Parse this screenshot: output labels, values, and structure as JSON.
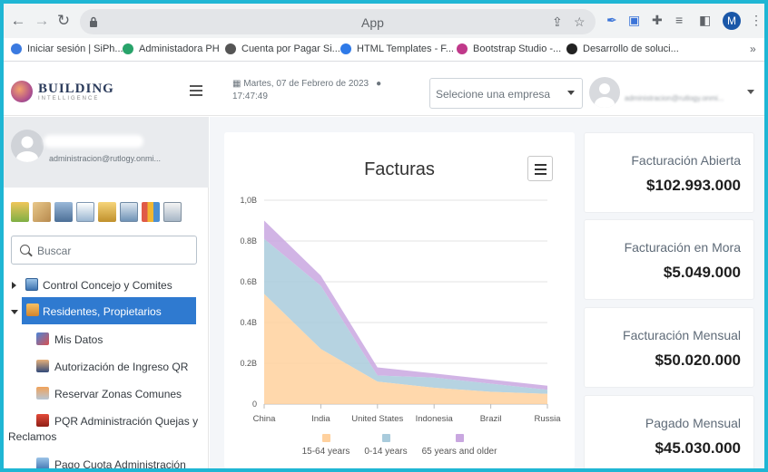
{
  "browser": {
    "address_text": "App",
    "profile_initial": "M",
    "bookmarks": [
      {
        "label": "Iniciar sesión | SiPh...",
        "color": "#3b7ae0"
      },
      {
        "label": "Administadora PH",
        "color": "#28a36a"
      },
      {
        "label": "Cuenta por Pagar Si...",
        "color": "#555555"
      },
      {
        "label": "HTML Templates - F...",
        "color": "#2f7ae8"
      },
      {
        "label": "Bootstrap Studio -...",
        "color": "#c0398a"
      },
      {
        "label": "Desarrollo de soluci...",
        "color": "#222222"
      }
    ],
    "bookmarks_more": "»"
  },
  "header": {
    "logo_text": "BUILDING",
    "logo_sub": "INTELLIGENCE",
    "date": "Martes, 07 de Febrero de 2023",
    "time": "17:47:49",
    "company_select_value": "Selecione una empresa",
    "user_text": "administracion@rutlogy.onmi..."
  },
  "sidebar": {
    "user_email": "administracion@rutlogy.onmi...",
    "search_placeholder": "Buscar",
    "quick_icons": [
      "home-icon",
      "tag-icon",
      "camera-icon",
      "document-icon",
      "scale-icon",
      "report-icon",
      "bar-chart-icon",
      "search-document-icon"
    ],
    "menu": [
      {
        "label": "Control Concejo y Comites"
      },
      {
        "label": "Residentes, Propietarios"
      }
    ],
    "submenu": [
      {
        "label": "Mis Datos"
      },
      {
        "label": "Autorización de Ingreso QR"
      },
      {
        "label": "Reservar Zonas Comunes"
      },
      {
        "label": "PQR Administración Quejas y"
      },
      {
        "label": "Reclamos"
      },
      {
        "label": "Pago Cuota Administración"
      }
    ]
  },
  "chart_card": {
    "title": "Facturas"
  },
  "chart_data": {
    "type": "area",
    "title": "Facturas",
    "categories": [
      "China",
      "India",
      "United States",
      "Indonesia",
      "Brazil",
      "Russia"
    ],
    "series": [
      {
        "name": "15-64 years",
        "color": "#ffd19e",
        "values": [
          0.54,
          0.27,
          0.11,
          0.08,
          0.06,
          0.05
        ]
      },
      {
        "name": "0-14 years",
        "color": "#a9cbdc",
        "values": [
          0.27,
          0.31,
          0.03,
          0.05,
          0.04,
          0.02
        ]
      },
      {
        "name": "65 years and older",
        "color": "#c9a7e0",
        "values": [
          0.09,
          0.05,
          0.04,
          0.02,
          0.02,
          0.02
        ]
      }
    ],
    "yticks": [
      "0",
      "0.2B",
      "0.4B",
      "0.6B",
      "0.8B",
      "1,0B"
    ],
    "ylim": [
      0,
      1.0
    ],
    "stacked": true,
    "legend": "bottom",
    "grid": true
  },
  "stats": [
    {
      "label": "Facturación Abierta",
      "value": "$102.993.000"
    },
    {
      "label": "Facturación en Mora",
      "value": "$5.049.000"
    },
    {
      "label": "Facturación Mensual",
      "value": "$50.020.000"
    },
    {
      "label": "Pagado Mensual",
      "value": "$45.030.000"
    }
  ]
}
